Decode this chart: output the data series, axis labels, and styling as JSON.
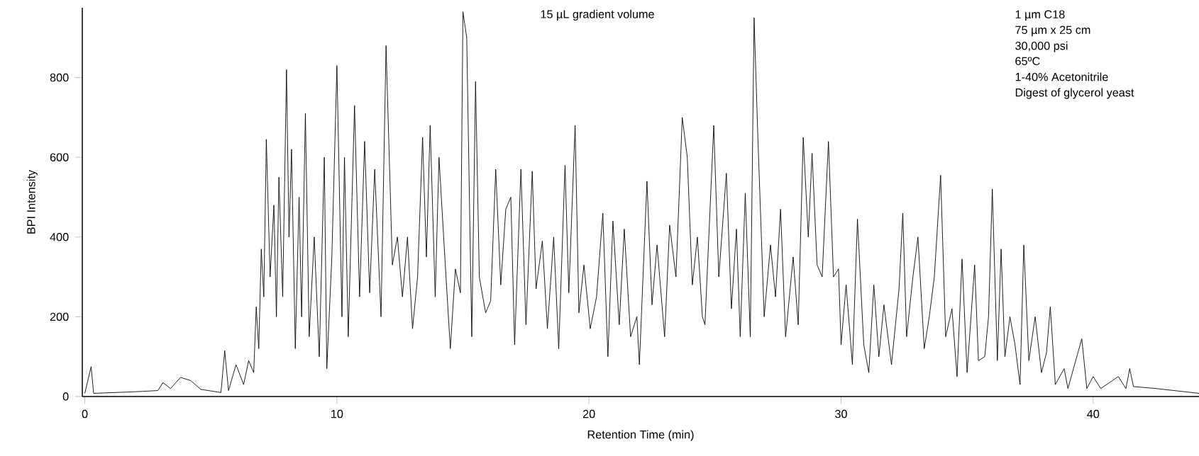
{
  "chart_data": {
    "type": "line",
    "xlabel": "Retention Time (min)",
    "ylabel": "BPI Intensity",
    "annotations": [
      "15 µL gradient volume",
      "1 µm C18",
      "75 µm x 25 cm",
      "30,000 psi",
      "65ºC",
      "1-40% Acetonitrile",
      "Digest of glycerol yeast"
    ],
    "xlim": [
      -0.1,
      44.2
    ],
    "ylim": [
      0,
      975
    ],
    "xticks": [
      0,
      10,
      20,
      30,
      40
    ],
    "yticks": [
      0,
      200,
      400,
      600,
      800
    ],
    "marker": "none",
    "line_style": "solid",
    "series": [
      {
        "color": "#000000",
        "x": [
          0,
          0.25,
          0.35,
          2.0,
          2.9,
          3.1,
          3.4,
          3.8,
          4.2,
          4.6,
          5.4,
          5.55,
          5.7,
          6.0,
          6.3,
          6.5,
          6.7,
          6.8,
          6.9,
          7.0,
          7.1,
          7.2,
          7.35,
          7.5,
          7.6,
          7.7,
          7.85,
          8.0,
          8.1,
          8.2,
          8.35,
          8.5,
          8.6,
          8.75,
          8.9,
          9.1,
          9.3,
          9.5,
          9.6,
          9.8,
          10.0,
          10.2,
          10.3,
          10.45,
          10.7,
          10.9,
          11.1,
          11.3,
          11.5,
          11.75,
          11.95,
          12.2,
          12.4,
          12.6,
          12.8,
          13.0,
          13.2,
          13.4,
          13.55,
          13.7,
          13.9,
          14.05,
          14.3,
          14.5,
          14.7,
          14.9,
          15.0,
          15.15,
          15.35,
          15.5,
          15.65,
          15.9,
          16.1,
          16.3,
          16.5,
          16.7,
          16.9,
          17.05,
          17.3,
          17.5,
          17.75,
          17.9,
          18.15,
          18.35,
          18.6,
          18.8,
          19.05,
          19.2,
          19.45,
          19.6,
          19.8,
          20.05,
          20.3,
          20.55,
          20.75,
          20.95,
          21.2,
          21.4,
          21.65,
          21.9,
          22.0,
          22.3,
          22.5,
          22.7,
          23.0,
          23.2,
          23.45,
          23.7,
          23.9,
          24.1,
          24.3,
          24.5,
          24.6,
          24.95,
          25.15,
          25.45,
          25.65,
          25.85,
          26.0,
          26.2,
          26.4,
          26.55,
          26.7,
          26.95,
          27.2,
          27.4,
          27.6,
          27.8,
          28.1,
          28.3,
          28.5,
          28.7,
          28.85,
          29.05,
          29.25,
          29.5,
          29.7,
          29.9,
          30.0,
          30.2,
          30.45,
          30.65,
          30.9,
          31.1,
          31.3,
          31.5,
          31.7,
          32.0,
          32.3,
          32.45,
          32.6,
          32.85,
          33.05,
          33.3,
          33.5,
          33.7,
          33.95,
          34.15,
          34.4,
          34.6,
          34.8,
          35.0,
          35.3,
          35.45,
          35.7,
          35.85,
          36.0,
          36.2,
          36.35,
          36.5,
          36.7,
          36.9,
          37.1,
          37.25,
          37.45,
          37.7,
          37.95,
          38.15,
          38.3,
          38.5,
          38.85,
          39.0,
          39.55,
          39.75,
          40.0,
          40.3,
          41.0,
          41.3,
          41.45,
          41.6,
          42.5,
          44.2
        ],
        "values": [
          8,
          75,
          8,
          12,
          15,
          35,
          20,
          48,
          40,
          18,
          10,
          115,
          15,
          80,
          30,
          90,
          60,
          225,
          120,
          370,
          250,
          645,
          300,
          480,
          200,
          550,
          250,
          820,
          400,
          620,
          120,
          500,
          200,
          710,
          150,
          400,
          100,
          600,
          70,
          350,
          830,
          200,
          600,
          150,
          730,
          250,
          640,
          260,
          570,
          200,
          880,
          330,
          400,
          250,
          400,
          170,
          300,
          650,
          350,
          680,
          250,
          600,
          330,
          120,
          320,
          260,
          965,
          900,
          150,
          790,
          300,
          210,
          240,
          570,
          280,
          470,
          500,
          130,
          570,
          180,
          565,
          270,
          390,
          170,
          400,
          120,
          580,
          260,
          680,
          210,
          330,
          170,
          250,
          460,
          100,
          440,
          180,
          420,
          150,
          200,
          80,
          540,
          230,
          380,
          150,
          430,
          300,
          700,
          600,
          280,
          400,
          200,
          180,
          680,
          300,
          560,
          220,
          420,
          150,
          510,
          150,
          950,
          650,
          200,
          380,
          250,
          470,
          150,
          350,
          180,
          650,
          400,
          610,
          330,
          300,
          640,
          300,
          320,
          130,
          280,
          80,
          445,
          130,
          60,
          280,
          100,
          230,
          80,
          270,
          460,
          150,
          300,
          400,
          120,
          200,
          300,
          555,
          150,
          220,
          50,
          345,
          60,
          330,
          90,
          100,
          200,
          520,
          90,
          370,
          100,
          200,
          130,
          30,
          380,
          90,
          200,
          60,
          110,
          225,
          30,
          70,
          20,
          145,
          20,
          50,
          20,
          50,
          20,
          70,
          25,
          20,
          8
        ]
      }
    ]
  }
}
